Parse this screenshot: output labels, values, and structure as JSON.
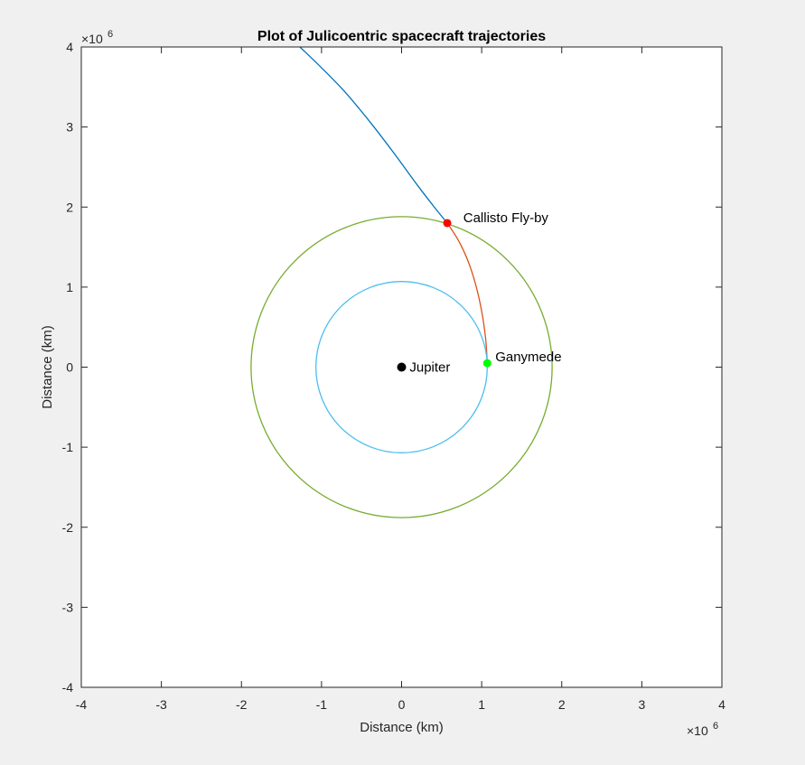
{
  "chart_data": {
    "type": "line",
    "title": "Plot of Julicoentric spacecraft trajectories",
    "xlabel": "Distance (km)",
    "ylabel": "Distance (km)",
    "xlim": [
      -4000000,
      4000000
    ],
    "ylim": [
      -4000000,
      4000000
    ],
    "x_exponent_label": "×10",
    "x_exponent_power": "6",
    "y_exponent_label": "×10",
    "y_exponent_power": "6",
    "x_ticks": [
      -4,
      -3,
      -2,
      -1,
      0,
      1,
      2,
      3,
      4
    ],
    "y_ticks": [
      -4,
      -3,
      -2,
      -1,
      0,
      1,
      2,
      3,
      4
    ],
    "x_tick_labels": [
      "-4",
      "-3",
      "-2",
      "-1",
      "0",
      "1",
      "2",
      "3",
      "4"
    ],
    "y_tick_labels": [
      "-4",
      "-3",
      "-2",
      "-1",
      "0",
      "1",
      "2",
      "3",
      "4"
    ],
    "grid": false,
    "series": [
      {
        "kind": "curve",
        "color": "#0072bd",
        "x": [
          -1270000,
          -1000000,
          -700000,
          -400000,
          -100000,
          200000,
          400000,
          570000
        ],
        "y": [
          4000000,
          3740000,
          3430000,
          3070000,
          2680000,
          2270000,
          2010000,
          1800000
        ]
      },
      {
        "kind": "curve",
        "color": "#d95319",
        "x": [
          570000,
          700000,
          820000,
          920000,
          1000000,
          1050000,
          1070000
        ],
        "y": [
          1800000,
          1600000,
          1350000,
          1050000,
          700000,
          350000,
          50000
        ]
      },
      {
        "kind": "circle",
        "color": "#4dbeee",
        "center": [
          0,
          0
        ],
        "radius": 1070000
      },
      {
        "kind": "circle",
        "color": "#77ac30",
        "center": [
          0,
          0
        ],
        "radius": 1880000
      }
    ],
    "points": [
      {
        "label": "Jupiter",
        "x": 0,
        "y": 0,
        "color": "#000000",
        "label_dx": 0.1,
        "label_dy": 0.0
      },
      {
        "label": "Ganymede",
        "x": 1070000,
        "y": 50000,
        "color": "#00ff00",
        "label_dx": 0.1,
        "label_dy": 0.08
      },
      {
        "label": "Callisto Fly-by",
        "x": 570000,
        "y": 1800000,
        "color": "#ff0000",
        "label_dx": 0.2,
        "label_dy": 0.07
      }
    ]
  }
}
